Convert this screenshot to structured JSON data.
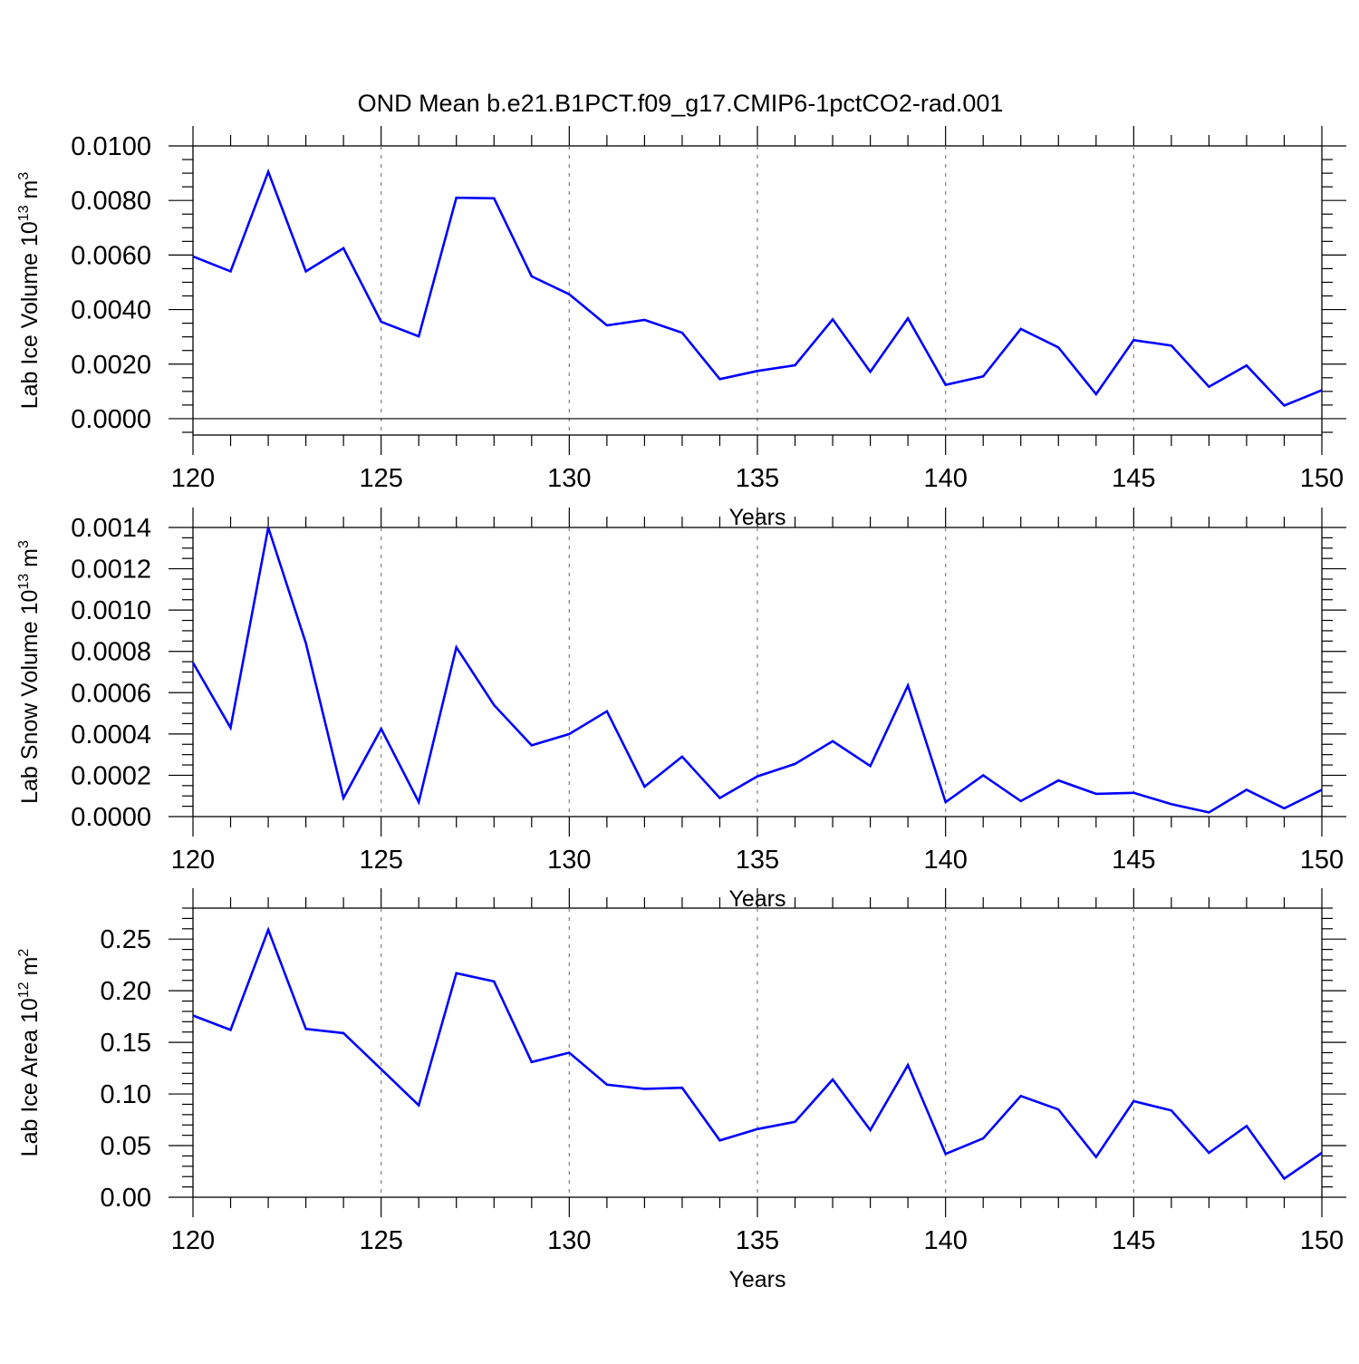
{
  "figure": {
    "title": "OND Mean b.e21.B1PCT.f09_g17.CMIP6-1pctCO2-rad.001"
  },
  "chart_data": [
    {
      "type": "line",
      "title": "OND Mean b.e21.B1PCT.f09_g17.CMIP6-1pctCO2-rad.001",
      "xlabel": "Years",
      "ylabel": "Lab Ice Volume 10",
      "ylabel_exponent": "13",
      "ylabel_unit": "m",
      "ylabel_unit_exponent": "3",
      "xlim": [
        120,
        150
      ],
      "ylim": [
        -0.0006,
        0.01
      ],
      "x_ticks": [
        120,
        125,
        130,
        135,
        140,
        145,
        150
      ],
      "x_tick_labels": [
        "120",
        "125",
        "130",
        "135",
        "140",
        "145",
        "150"
      ],
      "y_ticks": [
        0,
        0.002,
        0.004,
        0.006,
        0.008,
        0.01
      ],
      "y_tick_labels": [
        "0.0000",
        "0.0020",
        "0.0040",
        "0.0060",
        "0.0080",
        "0.0100"
      ],
      "grid": "vertical dashed at major x ticks",
      "color": "#0000ff",
      "x": [
        120,
        121,
        122,
        123,
        124,
        125,
        126,
        127,
        128,
        129,
        130,
        131,
        132,
        133,
        134,
        135,
        136,
        137,
        138,
        139,
        140,
        141,
        142,
        143,
        144,
        145,
        146,
        147,
        148,
        149,
        150
      ],
      "values": [
        0.00595,
        0.0054,
        0.00905,
        0.0054,
        0.00625,
        0.00355,
        0.00302,
        0.0081,
        0.00808,
        0.00522,
        0.00456,
        0.00342,
        0.00362,
        0.00315,
        0.00145,
        0.00175,
        0.00196,
        0.00364,
        0.00172,
        0.00368,
        0.00124,
        0.00155,
        0.00329,
        0.00261,
        0.0009,
        0.00288,
        0.00268,
        0.00117,
        0.00195,
        0.00048,
        0.00104
      ]
    },
    {
      "type": "line",
      "xlabel": "Years",
      "ylabel": "Lab Snow Volume 10",
      "ylabel_exponent": "13",
      "ylabel_unit": "m",
      "ylabel_unit_exponent": "3",
      "xlim": [
        120,
        150
      ],
      "ylim": [
        0.0,
        0.0014
      ],
      "x_ticks": [
        120,
        125,
        130,
        135,
        140,
        145,
        150
      ],
      "x_tick_labels": [
        "120",
        "125",
        "130",
        "135",
        "140",
        "145",
        "150"
      ],
      "y_ticks": [
        0,
        0.0002,
        0.0004,
        0.0006,
        0.0008,
        0.001,
        0.0012,
        0.0014
      ],
      "y_tick_labels": [
        "0.0000",
        "0.0002",
        "0.0004",
        "0.0006",
        "0.0008",
        "0.0010",
        "0.0012",
        "0.0014"
      ],
      "grid": "vertical dashed at major x ticks",
      "color": "#0000ff",
      "x": [
        120,
        121,
        122,
        123,
        124,
        125,
        126,
        127,
        128,
        129,
        130,
        131,
        132,
        133,
        134,
        135,
        136,
        137,
        138,
        139,
        140,
        141,
        142,
        143,
        144,
        145,
        146,
        147,
        148,
        149,
        150
      ],
      "values": [
        0.000745,
        0.00043,
        0.0014,
        0.00084,
        9e-05,
        0.000425,
        7e-05,
        0.00082,
        0.00054,
        0.000345,
        0.0004,
        0.00051,
        0.000145,
        0.00029,
        9e-05,
        0.000195,
        0.000255,
        0.000365,
        0.000245,
        0.000635,
        7e-05,
        0.0002,
        7.5e-05,
        0.000175,
        0.00011,
        0.000115,
        6e-05,
        2e-05,
        0.00013,
        4e-05,
        0.00013
      ]
    },
    {
      "type": "line",
      "xlabel": "Years",
      "ylabel": "Lab Ice Area 10",
      "ylabel_exponent": "12",
      "ylabel_unit": "m",
      "ylabel_unit_exponent": "2",
      "xlim": [
        120,
        150
      ],
      "ylim": [
        0.0,
        0.28
      ],
      "x_ticks": [
        120,
        125,
        130,
        135,
        140,
        145,
        150
      ],
      "x_tick_labels": [
        "120",
        "125",
        "130",
        "135",
        "140",
        "145",
        "150"
      ],
      "y_ticks": [
        0,
        0.05,
        0.1,
        0.15,
        0.2,
        0.25
      ],
      "y_tick_labels": [
        "0.00",
        "0.05",
        "0.10",
        "0.15",
        "0.20",
        "0.25"
      ],
      "grid": "vertical dashed at major x ticks",
      "color": "#0000ff",
      "x": [
        120,
        121,
        122,
        123,
        124,
        125,
        126,
        127,
        128,
        129,
        130,
        131,
        132,
        133,
        134,
        135,
        136,
        137,
        138,
        139,
        140,
        141,
        142,
        143,
        144,
        145,
        146,
        147,
        148,
        149,
        150
      ],
      "values": [
        0.176,
        0.162,
        0.259,
        0.163,
        0.159,
        0.124,
        0.089,
        0.217,
        0.209,
        0.131,
        0.14,
        0.109,
        0.105,
        0.106,
        0.055,
        0.066,
        0.073,
        0.114,
        0.065,
        0.128,
        0.042,
        0.057,
        0.098,
        0.085,
        0.039,
        0.093,
        0.084,
        0.043,
        0.069,
        0.018,
        0.043
      ]
    }
  ]
}
